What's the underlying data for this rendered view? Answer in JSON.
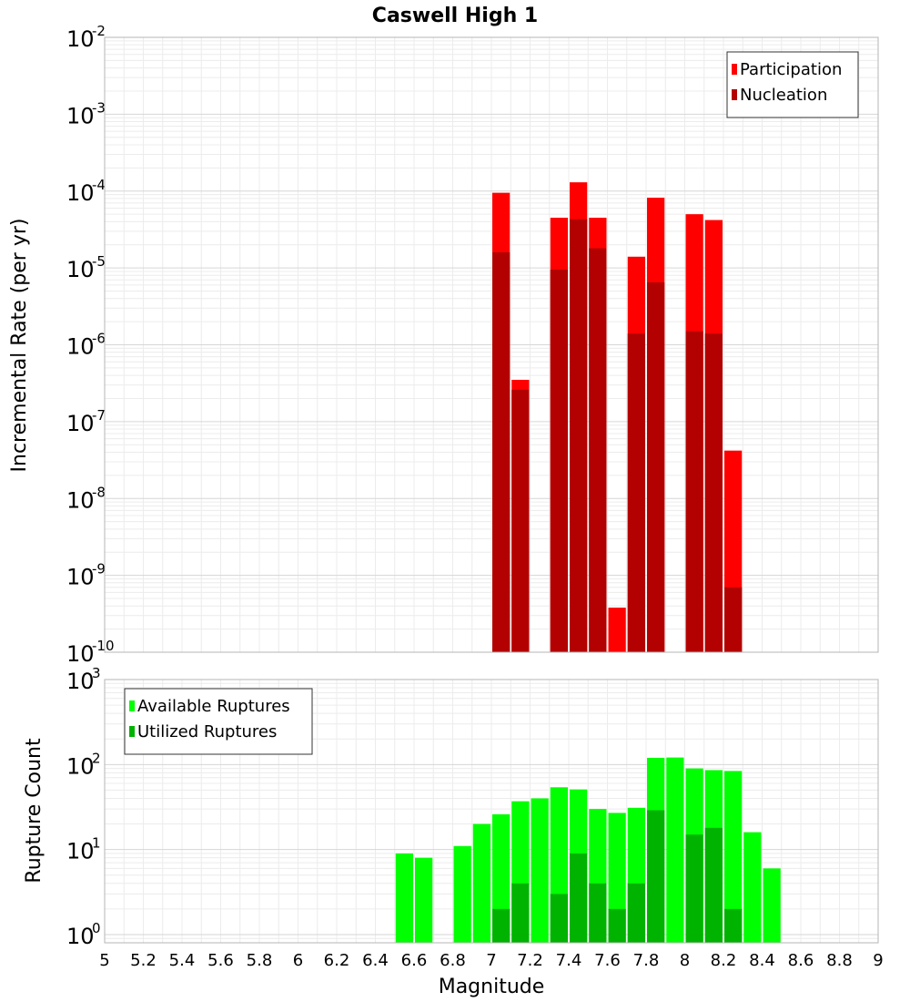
{
  "chart_data": [
    {
      "type": "bar",
      "title": "Caswell High 1",
      "xlabel": "",
      "ylabel": "Incremental Rate (per yr)",
      "y_scale": "log",
      "ylim": [
        1e-10,
        0.01
      ],
      "xlim": [
        5,
        9
      ],
      "bar_width": 0.1,
      "grid": true,
      "legend_position": "top-right",
      "y_tick_exponents": [
        "-10",
        "-9",
        "-8",
        "-7",
        "-6",
        "-5",
        "-4",
        "-3",
        "-2"
      ],
      "series": [
        {
          "name": "Participation",
          "color": "#ff0000",
          "x": [
            7.05,
            7.15,
            7.35,
            7.45,
            7.55,
            7.65,
            7.75,
            7.85,
            8.05,
            8.15,
            8.25
          ],
          "values": [
            9.5e-05,
            3.5e-07,
            4.5e-05,
            0.00013,
            4.5e-05,
            3.8e-10,
            1.4e-05,
            8.2e-05,
            5e-05,
            4.2e-05,
            4.2e-08
          ]
        },
        {
          "name": "Nucleation",
          "color": "#b30000",
          "x": [
            7.05,
            7.15,
            7.35,
            7.45,
            7.55,
            7.75,
            7.85,
            8.05,
            8.15,
            8.25
          ],
          "values": [
            1.6e-05,
            2.6e-07,
            9.5e-06,
            4.3e-05,
            1.8e-05,
            1.4e-06,
            6.5e-06,
            1.5e-06,
            1.4e-06,
            7e-10
          ]
        }
      ]
    },
    {
      "type": "bar",
      "title": "",
      "xlabel": "Magnitude",
      "ylabel": "Rupture Count",
      "y_scale": "log",
      "ylim": [
        0.8,
        1000
      ],
      "xlim": [
        5,
        9
      ],
      "bar_width": 0.1,
      "grid": true,
      "legend_position": "top-left",
      "y_tick_exponents": [
        "0",
        "1",
        "2",
        "3"
      ],
      "x_ticks": [
        "5",
        "5.2",
        "5.4",
        "5.6",
        "5.8",
        "6",
        "6.2",
        "6.4",
        "6.6",
        "6.8",
        "7",
        "7.2",
        "7.4",
        "7.6",
        "7.8",
        "8",
        "8.2",
        "8.4",
        "8.6",
        "8.8",
        "9"
      ],
      "series": [
        {
          "name": "Available Ruptures",
          "color": "#00ff00",
          "x": [
            6.55,
            6.65,
            6.85,
            6.95,
            7.05,
            7.15,
            7.25,
            7.35,
            7.45,
            7.55,
            7.65,
            7.75,
            7.85,
            7.95,
            8.05,
            8.15,
            8.25,
            8.35,
            8.45
          ],
          "values": [
            9,
            8,
            11,
            20,
            26,
            37,
            40,
            54,
            51,
            30,
            27,
            31,
            120,
            121,
            90,
            86,
            84,
            16,
            6
          ]
        },
        {
          "name": "Utilized Ruptures",
          "color": "#00b300",
          "x": [
            7.05,
            7.15,
            7.35,
            7.45,
            7.55,
            7.65,
            7.75,
            7.85,
            8.05,
            8.15,
            8.25
          ],
          "values": [
            2,
            4,
            3,
            9,
            4,
            2,
            4,
            29,
            15,
            18,
            2
          ]
        }
      ]
    }
  ]
}
